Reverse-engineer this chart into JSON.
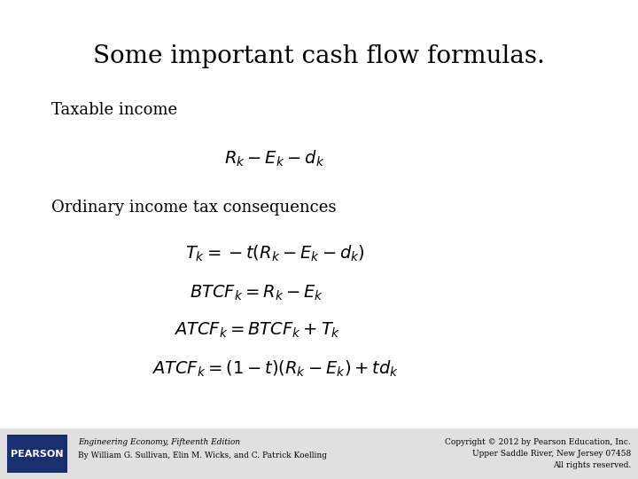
{
  "title": "Some important cash flow formulas.",
  "section1_label": "Taxable income",
  "formula1": "$R_k - E_k - d_k$",
  "section2_label": "Ordinary income tax consequences",
  "formula2": "$T_k = -t(R_k - E_k - d_k)$",
  "formula3": "$BTCF_k = R_k - E_k$",
  "formula4": "$ATCF_k = BTCF_k + T_k$",
  "formula5": "$ATCF_k = (1-t)(R_k - E_k) + td_k$",
  "footer_left_line1": "Engineering Economy, Fifteenth Edition",
  "footer_left_line2": "By William G. Sullivan, Elin M. Wicks, and C. Patrick Koelling",
  "footer_right_line1": "Copyright © 2012 by Pearson Education, Inc.",
  "footer_right_line2": "Upper Saddle River, New Jersey 07458",
  "footer_right_line3": "All rights reserved.",
  "pearson_label": "PEARSON",
  "bg_color": "#ffffff",
  "footer_bg_color": "#e0e0e0",
  "pearson_bg": "#1a2f6e",
  "title_fontsize": 20,
  "label_fontsize": 13,
  "formula_fontsize": 14,
  "footer_fontsize": 6.5,
  "pearson_fontsize": 8
}
